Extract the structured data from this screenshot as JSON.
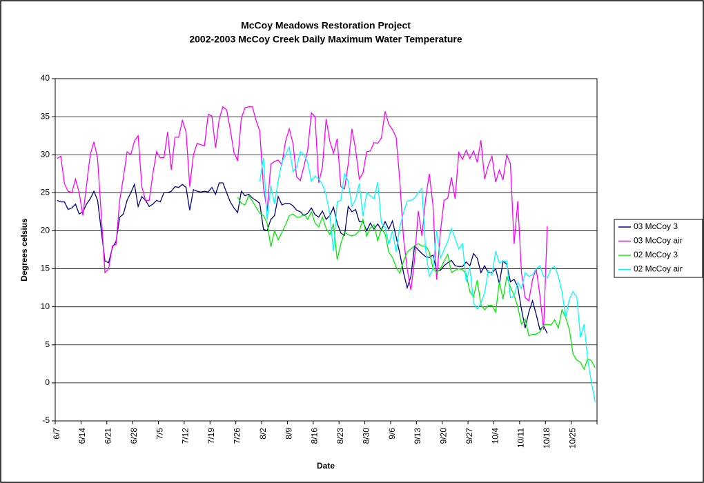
{
  "chart_data": {
    "type": "line",
    "title": "McCoy Meadows Restoration Project",
    "subtitle": "2002-2003 McCoy Creek Daily Maximum Water Temperature",
    "xlabel": "Date",
    "ylabel": "Degrees celsius",
    "categories": [
      "6/7",
      null,
      null,
      null,
      null,
      null,
      null,
      "6/14",
      null,
      null,
      null,
      null,
      null,
      null,
      "6/21",
      null,
      null,
      null,
      null,
      null,
      null,
      "6/28",
      null,
      null,
      null,
      null,
      null,
      null,
      "7/5",
      null,
      null,
      null,
      null,
      null,
      null,
      "7/12",
      null,
      null,
      null,
      null,
      null,
      null,
      "7/19",
      null,
      null,
      null,
      null,
      null,
      null,
      "7/26",
      null,
      null,
      null,
      null,
      null,
      null,
      "8/2",
      null,
      null,
      null,
      null,
      null,
      null,
      "8/9",
      null,
      null,
      null,
      null,
      null,
      null,
      "8/16",
      null,
      null,
      null,
      null,
      null,
      null,
      "8/23",
      null,
      null,
      null,
      null,
      null,
      null,
      "8/30",
      null,
      null,
      null,
      null,
      null,
      null,
      "9/6",
      null,
      null,
      null,
      null,
      null,
      null,
      "9/13",
      null,
      null,
      null,
      null,
      null,
      null,
      "9/20",
      null,
      null,
      null,
      null,
      null,
      null,
      "9/27",
      null,
      null,
      null,
      null,
      null,
      null,
      "10/4",
      null,
      null,
      null,
      null,
      null,
      null,
      "10/11",
      null,
      null,
      null,
      null,
      null,
      null,
      "10/18",
      null,
      null,
      null,
      null,
      null,
      null,
      "10/25",
      null,
      null,
      null,
      null,
      null,
      null
    ],
    "series": [
      {
        "name": "03 McCoy 3",
        "color": "#000080",
        "values": [
          24,
          23.8,
          23.8,
          22.8,
          23,
          23.5,
          22.2,
          22.5,
          23.5,
          24.2,
          25.2,
          24,
          20,
          16,
          15.8,
          17.8,
          18.6,
          21.8,
          22.2,
          24,
          25,
          26.1,
          23.2,
          24.5,
          24,
          23.2,
          23.5,
          24,
          23.8,
          25,
          25,
          25.2,
          25.8,
          25.7,
          26.1,
          25.7,
          22.7,
          25.4,
          25.2,
          25.1,
          25.2,
          25.1,
          25.7,
          24.8,
          26.3,
          26.3,
          25,
          23.8,
          23,
          22.4,
          25.2,
          24.6,
          24.8,
          24.3,
          24,
          23.6,
          20.2,
          20,
          21.5,
          22,
          24.5,
          23.4,
          23.6,
          23.6,
          23.3,
          22.7,
          22.5,
          22,
          22.3,
          23,
          22.1,
          21.8,
          22.6,
          21.5,
          22,
          23.1,
          21,
          19.7,
          19.4,
          23.2,
          22.5,
          22.8,
          21.2,
          21.2,
          20,
          21,
          20.2,
          20.9,
          20.1,
          21.2,
          20.2,
          21.3,
          19.2,
          17,
          14.5,
          12.5,
          14,
          18,
          17.5,
          17,
          16.6,
          16.5,
          16.8,
          14.7,
          14.8,
          15.4,
          15.8,
          16.1,
          15.4,
          15.3,
          15.3,
          15.9,
          15.4,
          17,
          16.4,
          14.5,
          15.4,
          14.5,
          14.5,
          15,
          13,
          16,
          15.6,
          13.3,
          13.6,
          12.6,
          9.7,
          7.2,
          9.3,
          10.8,
          9,
          7,
          7.5,
          6.5,
          null,
          null,
          null,
          null,
          null,
          null,
          null,
          null,
          null,
          null,
          null,
          null,
          null
        ]
      },
      {
        "name": "03 McCoy air",
        "color": "#ff00ff",
        "values": [
          29.5,
          29.8,
          26.2,
          25.2,
          25,
          26.8,
          25,
          22,
          26,
          30,
          31.7,
          29.5,
          22,
          14.5,
          15,
          18,
          18.2,
          24,
          27,
          30.4,
          30,
          31.8,
          32.5,
          25.8,
          24,
          24,
          27.5,
          30.4,
          29.6,
          29.6,
          33,
          28,
          32.3,
          32.3,
          34.5,
          33,
          25.8,
          30,
          31.5,
          31.3,
          31.2,
          35.3,
          35.1,
          30.9,
          34.7,
          36.3,
          35.9,
          33.3,
          30.3,
          29.2,
          34.8,
          36.2,
          36.3,
          36.3,
          34.5,
          33.1,
          25.7,
          22.6,
          28.8,
          29.1,
          29.3,
          28.7,
          31.8,
          33.4,
          31.5,
          27.1,
          26.6,
          28.5,
          30.6,
          35.5,
          35,
          26.3,
          28.4,
          34.7,
          31.8,
          30.2,
          32.1,
          25.8,
          25.5,
          28.8,
          33.4,
          30.7,
          26.8,
          27.6,
          30.4,
          30.5,
          31.6,
          31.5,
          32.2,
          35.7,
          34,
          33.3,
          32.3,
          26.5,
          19,
          15,
          12.2,
          16.2,
          22.6,
          19.3,
          24.2,
          27.5,
          23.3,
          13.6,
          19.8,
          24,
          24.3,
          27,
          24.2,
          30.3,
          29.4,
          30.6,
          29.5,
          30.5,
          29,
          31.9,
          26.8,
          28.6,
          29.8,
          26.4,
          28,
          26.7,
          30,
          28.8,
          18.3,
          23.9,
          14.5,
          11.2,
          10.8,
          13.6,
          15,
          11.5,
          7,
          20.6,
          null,
          null,
          null,
          null,
          null,
          null,
          null,
          null,
          null,
          null,
          null,
          null,
          null
        ]
      },
      {
        "name": "02 McCoy 3",
        "color": "#00ee00",
        "values": [
          null,
          null,
          null,
          null,
          null,
          null,
          null,
          null,
          null,
          null,
          null,
          null,
          null,
          null,
          null,
          null,
          null,
          null,
          null,
          null,
          null,
          null,
          null,
          null,
          null,
          null,
          null,
          null,
          null,
          null,
          null,
          null,
          null,
          null,
          null,
          null,
          null,
          null,
          null,
          null,
          null,
          null,
          null,
          null,
          null,
          null,
          null,
          null,
          null,
          24.4,
          23.6,
          23.4,
          24.6,
          23.9,
          23.1,
          22.3,
          22,
          21,
          17.9,
          20,
          18.8,
          19.8,
          20.8,
          22,
          22.2,
          21.8,
          21.8,
          22.2,
          21.5,
          22.5,
          21,
          20.5,
          21.8,
          20.3,
          19.5,
          20.9,
          16.2,
          18.3,
          19.8,
          19.5,
          19.3,
          19.5,
          20,
          21.5,
          19.3,
          20.4,
          20.8,
          18.7,
          20.3,
          19.6,
          17.2,
          16.5,
          15.2,
          14.4,
          16,
          17.2,
          17.6,
          18,
          18.3,
          18,
          18,
          17.2,
          15.1,
          14.5,
          15,
          16,
          16.9,
          14.5,
          14.8,
          15,
          14.9,
          14.3,
          12,
          11.3,
          13.5,
          10.3,
          9.6,
          10.2,
          10.2,
          9.3,
          13.3,
          11,
          14,
          12.6,
          11.5,
          10,
          7.7,
          8.4,
          6.2,
          6.4,
          6.4,
          6.7,
          7.6,
          7.7,
          7.6,
          8.3,
          7.2,
          9.6,
          8.6,
          7,
          3.8,
          3,
          2.7,
          1.8,
          3.2,
          2.9,
          2
        ]
      },
      {
        "name": "02 McCoy air",
        "color": "#00ffff",
        "values": [
          null,
          null,
          null,
          null,
          null,
          null,
          null,
          null,
          null,
          null,
          null,
          null,
          null,
          null,
          null,
          null,
          null,
          null,
          null,
          null,
          null,
          null,
          null,
          null,
          null,
          null,
          null,
          null,
          null,
          null,
          null,
          null,
          null,
          null,
          null,
          null,
          null,
          null,
          null,
          null,
          null,
          null,
          null,
          null,
          null,
          null,
          null,
          null,
          null,
          null,
          null,
          null,
          null,
          null,
          null,
          26.5,
          29.6,
          21.5,
          25.9,
          23.5,
          26.6,
          29,
          30,
          31,
          27.8,
          28.3,
          30.4,
          30,
          29,
          26.5,
          27.2,
          26.8,
          26.1,
          24.7,
          22.1,
          17.3,
          23.8,
          24,
          27.5,
          26.5,
          23.2,
          24.1,
          26.2,
          21.9,
          25,
          24.6,
          24.2,
          26.4,
          21,
          20.5,
          18.2,
          20,
          17.2,
          20.5,
          22.4,
          23.9,
          24,
          24.3,
          25,
          25.6,
          17.5,
          14,
          15,
          20,
          16.4,
          17.5,
          18.6,
          20.3,
          19,
          17.6,
          18.3,
          13.3,
          15.2,
          10.5,
          9.7,
          10.5,
          11.8,
          14.8,
          14.2,
          17.3,
          15.8,
          16,
          16,
          11.2,
          11.4,
          13.2,
          12.4,
          14.5,
          14,
          14.2,
          15,
          15.4,
          14,
          13.8,
          15,
          15.3,
          14,
          12,
          8.6,
          11,
          12,
          11.3,
          6,
          7.7,
          3,
          0,
          -2.5
        ]
      }
    ],
    "ylim": [
      -5,
      40
    ],
    "yticks": [
      -5,
      0,
      5,
      10,
      15,
      20,
      25,
      30,
      35,
      40
    ],
    "grid": true,
    "legend": "right"
  }
}
